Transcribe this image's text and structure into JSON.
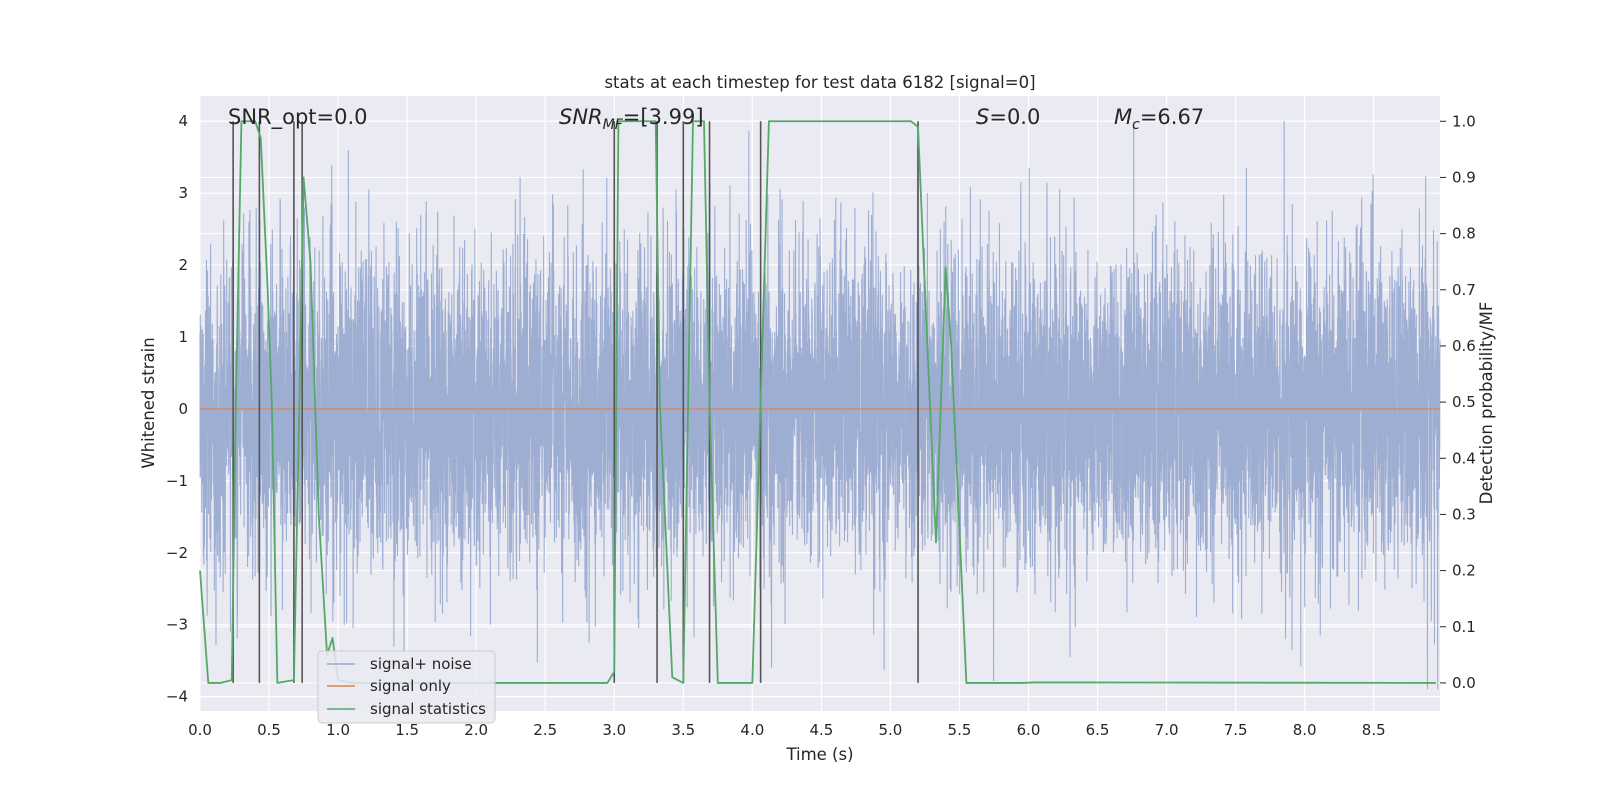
{
  "chart_data": {
    "type": "line",
    "title": "stats at each timestep for test data 6182 [signal=0]",
    "xlabel": "Time (s)",
    "ylabel": "Whitened strain",
    "y2label": "Detection probability/MF",
    "xlim": [
      0.0,
      8.98
    ],
    "ylim": [
      -4.2,
      4.35
    ],
    "y2lim": [
      -0.05,
      1.045
    ],
    "x_ticks": [
      "0.0",
      "0.5",
      "1.0",
      "1.5",
      "2.0",
      "2.5",
      "3.0",
      "3.5",
      "4.0",
      "4.5",
      "5.0",
      "5.5",
      "6.0",
      "6.5",
      "7.0",
      "7.5",
      "8.0",
      "8.5"
    ],
    "y_ticks": [
      "4",
      "3",
      "2",
      "1",
      "0",
      "−1",
      "−2",
      "−3",
      "−4"
    ],
    "y2_ticks": [
      "1.0",
      "0.9",
      "0.8",
      "0.7",
      "0.6",
      "0.5",
      "0.4",
      "0.3",
      "0.2",
      "0.1",
      "0.0"
    ],
    "annotations": {
      "snr_opt": "SNR_opt=0.0",
      "snr_mf_main": "SNR",
      "snr_mf_sub": "MF",
      "snr_mf_value": "=[3.99]",
      "s_main": "S",
      "s_value": "=0.0",
      "mc_main": "M",
      "mc_sub": "c",
      "mc_value": "=6.67"
    },
    "legend": {
      "placement": "lower-left",
      "entries": [
        "signal+ noise",
        "signal only",
        "signal statistics"
      ]
    },
    "colors": {
      "noise": "#9aabd0",
      "signal": "#dd8452",
      "stats": "#55a868",
      "vlines": "#555555",
      "plot_bg": "#eaeaf2",
      "grid": "#ffffff"
    },
    "series": [
      {
        "name": "signal+ noise",
        "axis": "left",
        "description_sigma": 1.1,
        "envelope_peak": 4.0,
        "envelope_trough": -3.9
      },
      {
        "name": "signal only",
        "axis": "left",
        "x": [
          0.0,
          8.98
        ],
        "y": [
          0.0,
          0.0
        ]
      },
      {
        "name": "signal statistics",
        "axis": "right",
        "x": [
          0.0,
          0.06,
          0.15,
          0.23,
          0.26,
          0.3,
          0.4,
          0.44,
          0.49,
          0.52,
          0.56,
          0.68,
          0.72,
          0.75,
          0.8,
          0.86,
          0.92,
          0.96,
          1.0,
          1.1,
          2.5,
          2.95,
          3.0,
          3.03,
          3.3,
          3.33,
          3.42,
          3.5,
          3.57,
          3.65,
          3.69,
          3.75,
          3.85,
          4.0,
          4.06,
          4.12,
          5.15,
          5.2,
          5.25,
          5.33,
          5.4,
          5.44,
          5.55,
          5.6,
          5.95,
          6.05,
          8.95
        ],
        "y": [
          0.2,
          0.0,
          0.0,
          0.005,
          0.5,
          1.0,
          1.0,
          0.97,
          0.7,
          0.5,
          0.0,
          0.005,
          0.5,
          0.9,
          0.75,
          0.3,
          0.05,
          0.08,
          0.005,
          0.0,
          0.0,
          0.0,
          0.02,
          1.0,
          1.0,
          0.5,
          0.01,
          0.0,
          1.0,
          1.0,
          0.5,
          0.0,
          0.0,
          0.0,
          0.5,
          1.0,
          1.0,
          0.99,
          0.7,
          0.25,
          0.74,
          0.6,
          0.0,
          0.0,
          0.0,
          0.001,
          0.0
        ]
      }
    ],
    "vlines_x": [
      0.24,
      0.43,
      0.68,
      0.74,
      3.0,
      3.31,
      3.5,
      3.69,
      4.06,
      5.2
    ]
  }
}
